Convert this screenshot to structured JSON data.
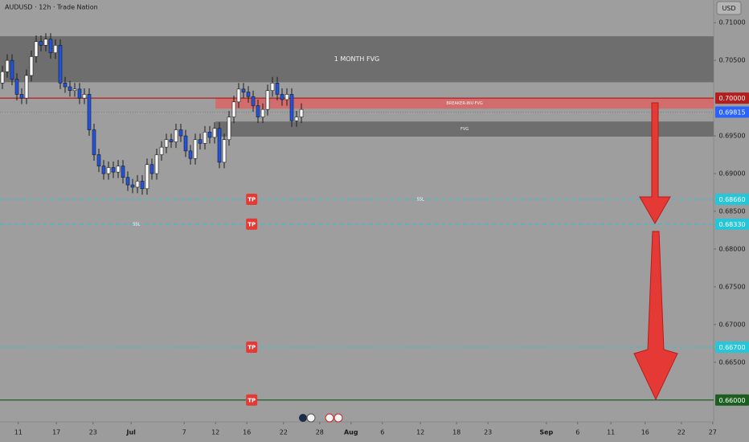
{
  "chart_data": {
    "type": "candlestick",
    "title": "AUDUSD · 12h · Trade Nation",
    "currency": "USD",
    "up_color": "#ffffff",
    "down_color": "#1e53e5",
    "x": [
      0,
      1,
      2,
      3,
      4,
      5,
      6,
      7,
      8,
      9,
      10,
      11,
      12,
      13,
      14,
      15,
      16,
      17,
      18,
      19,
      20,
      21,
      22,
      23,
      24,
      25,
      26,
      27,
      28,
      29,
      30,
      31,
      32,
      33,
      34,
      35,
      36,
      37,
      38,
      39,
      40,
      41,
      42,
      43,
      44,
      45,
      46,
      47,
      48,
      49,
      50,
      51,
      52,
      53,
      54,
      55,
      56,
      57,
      58,
      59,
      60,
      61,
      62
    ],
    "open": [
      0.702,
      0.7035,
      0.705,
      0.7025,
      0.7005,
      0.7,
      0.703,
      0.7055,
      0.7075,
      0.707,
      0.7078,
      0.706,
      0.707,
      0.702,
      0.7015,
      0.701,
      0.7012,
      0.7,
      0.7005,
      0.6958,
      0.6925,
      0.691,
      0.69,
      0.6908,
      0.6902,
      0.691,
      0.6895,
      0.6885,
      0.6882,
      0.689,
      0.688,
      0.6912,
      0.69,
      0.6925,
      0.6935,
      0.6945,
      0.6942,
      0.6958,
      0.695,
      0.693,
      0.692,
      0.6945,
      0.694,
      0.6955,
      0.6948,
      0.696,
      0.6915,
      0.6945,
      0.6975,
      0.6995,
      0.7012,
      0.7008,
      0.7002,
      0.699,
      0.6975,
      0.6985,
      0.701,
      0.702,
      0.7005,
      0.6998,
      0.7005,
      0.697,
      0.6975
    ],
    "high": [
      0.7043,
      0.7058,
      0.7058,
      0.7033,
      0.7013,
      0.7038,
      0.7063,
      0.7083,
      0.7083,
      0.7086,
      0.7086,
      0.7078,
      0.7078,
      0.7028,
      0.7023,
      0.702,
      0.702,
      0.7013,
      0.7013,
      0.6966,
      0.6933,
      0.6918,
      0.6916,
      0.6916,
      0.6918,
      0.6918,
      0.6903,
      0.6893,
      0.6898,
      0.6898,
      0.692,
      0.692,
      0.6933,
      0.6943,
      0.6953,
      0.6953,
      0.6966,
      0.6966,
      0.6958,
      0.6938,
      0.6953,
      0.6953,
      0.6963,
      0.6963,
      0.6968,
      0.6968,
      0.6953,
      0.6983,
      0.7003,
      0.702,
      0.702,
      0.7016,
      0.701,
      0.6998,
      0.6993,
      0.7018,
      0.7028,
      0.7028,
      0.7013,
      0.7013,
      0.7013,
      0.6983,
      0.6993
    ],
    "low": [
      0.7012,
      0.7027,
      0.7017,
      0.6997,
      0.6992,
      0.6992,
      0.7022,
      0.7047,
      0.7062,
      0.7062,
      0.7052,
      0.7052,
      0.7012,
      0.7007,
      0.7002,
      0.7002,
      0.6992,
      0.6992,
      0.695,
      0.6917,
      0.6902,
      0.6892,
      0.6892,
      0.6894,
      0.6894,
      0.6887,
      0.6877,
      0.6874,
      0.6874,
      0.6872,
      0.6872,
      0.6892,
      0.6892,
      0.6917,
      0.6927,
      0.6934,
      0.6934,
      0.6942,
      0.6922,
      0.6912,
      0.6912,
      0.6932,
      0.6932,
      0.694,
      0.694,
      0.6907,
      0.6907,
      0.6937,
      0.6967,
      0.6987,
      0.7,
      0.6994,
      0.6982,
      0.6967,
      0.6967,
      0.6977,
      0.7002,
      0.6997,
      0.699,
      0.699,
      0.6962,
      0.6962,
      0.6967
    ],
    "close": [
      0.7035,
      0.705,
      0.7025,
      0.7005,
      0.7,
      0.703,
      0.7055,
      0.7075,
      0.707,
      0.7078,
      0.706,
      0.707,
      0.702,
      0.7015,
      0.701,
      0.7012,
      0.7,
      0.7005,
      0.6958,
      0.6925,
      0.691,
      0.69,
      0.6908,
      0.6902,
      0.691,
      0.6895,
      0.6885,
      0.6882,
      0.689,
      0.688,
      0.6912,
      0.69,
      0.6925,
      0.6935,
      0.6945,
      0.6942,
      0.6958,
      0.695,
      0.693,
      0.692,
      0.6945,
      0.694,
      0.6955,
      0.6948,
      0.696,
      0.6915,
      0.6945,
      0.6975,
      0.6995,
      0.7012,
      0.7008,
      0.7002,
      0.699,
      0.6975,
      0.6985,
      0.701,
      0.702,
      0.7005,
      0.6998,
      0.7005,
      0.697,
      0.6975,
      0.6985
    ],
    "xlim": [
      -0.5,
      147.5
    ],
    "xticks": [
      {
        "value": 3.3,
        "label": "11"
      },
      {
        "value": 11.2,
        "label": "17"
      },
      {
        "value": 18.8,
        "label": "23"
      },
      {
        "value": 26.7,
        "label": "Jul"
      },
      {
        "value": 37.7,
        "label": "7"
      },
      {
        "value": 44.2,
        "label": "12"
      },
      {
        "value": 50.7,
        "label": "16"
      },
      {
        "value": 58.3,
        "label": "22"
      },
      {
        "value": 65.8,
        "label": "28"
      },
      {
        "value": 72.3,
        "label": "Aug"
      },
      {
        "value": 78.8,
        "label": "6"
      },
      {
        "value": 86.7,
        "label": "12"
      },
      {
        "value": 94.2,
        "label": "18"
      },
      {
        "value": 100.7,
        "label": "23"
      },
      {
        "value": 112.8,
        "label": "Sep"
      },
      {
        "value": 119.3,
        "label": "6"
      },
      {
        "value": 126.2,
        "label": "11"
      },
      {
        "value": 133.3,
        "label": "16"
      },
      {
        "value": 140.8,
        "label": "22"
      },
      {
        "value": 147.3,
        "label": "27"
      }
    ],
    "ylim": [
      0.6571,
      0.713
    ],
    "yticks": [
      {
        "value": 0.71,
        "label": "0.71000"
      },
      {
        "value": 0.705,
        "label": "0.70500"
      },
      {
        "value": 0.695,
        "label": "0.69500"
      },
      {
        "value": 0.69,
        "label": "0.69000"
      },
      {
        "value": 0.685,
        "label": "0.68500"
      },
      {
        "value": 0.68,
        "label": "0.68000"
      },
      {
        "value": 0.675,
        "label": "0.67500"
      },
      {
        "value": 0.67,
        "label": "0.67000"
      },
      {
        "value": 0.665,
        "label": "0.66500"
      }
    ],
    "zones": [
      {
        "label": "1 MONTH FVG",
        "low": 0.7021,
        "high": 0.7082,
        "from": -0.5,
        "color": "#6b6b6b"
      },
      {
        "label": "BREAKER-INV-FVG",
        "low": 0.6986,
        "high": 0.7,
        "from": 44.2,
        "color": "#d46a6a"
      },
      {
        "label": "FVG",
        "low": 0.6949,
        "high": 0.6969,
        "from": 44.2,
        "color": "#6b6b6b"
      }
    ],
    "levels": [
      {
        "value": 0.7,
        "label": "0.70000",
        "color": "#b71c1c",
        "style": "solid"
      },
      {
        "value": 0.69815,
        "label": "0.69815",
        "color": "#2962ff",
        "style": "dotted"
      },
      {
        "value": 0.6866,
        "label": "0.68660",
        "color": "#26c6da",
        "style": "dashed"
      },
      {
        "value": 0.6833,
        "label": "0.68330",
        "color": "#26c6da",
        "style": "dashed"
      },
      {
        "value": 0.667,
        "label": "0.66700",
        "color": "#26c6da",
        "style": "dashed"
      },
      {
        "value": 0.66,
        "label": "0.66000",
        "color": "#1b5e20",
        "style": "solid"
      }
    ],
    "annotations": [
      {
        "text": "SSL",
        "price": 0.6866,
        "x": 86.7
      },
      {
        "text": "SSL",
        "price": 0.6833,
        "x": 27.8
      }
    ],
    "markers": [
      {
        "text": "TP",
        "price": 0.6866,
        "x": 51.7
      },
      {
        "text": "TP",
        "price": 0.6833,
        "x": 51.7
      },
      {
        "text": "TP",
        "price": 0.667,
        "x": 51.7
      },
      {
        "text": "TP",
        "price": 0.66,
        "x": 51.7
      }
    ]
  }
}
